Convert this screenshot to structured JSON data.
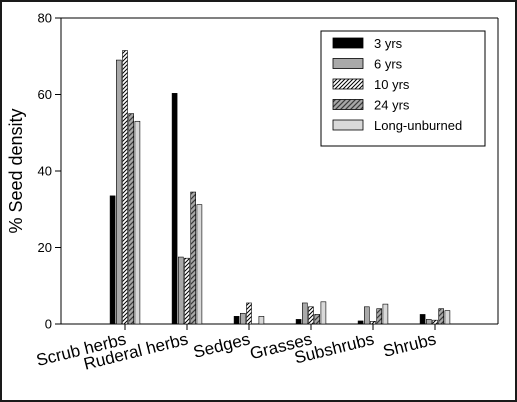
{
  "chart_data": {
    "type": "bar",
    "title": "",
    "xlabel": "",
    "ylabel": "% Seed density",
    "ylim": [
      0,
      80
    ],
    "yticks": [
      0,
      20,
      40,
      60,
      80
    ],
    "grid": false,
    "legend_position": "top-right",
    "categories": [
      "Scrub herbs",
      "Ruderal herbs",
      "Sedges",
      "Grasses",
      "Subshrubs",
      "Shrubs"
    ],
    "series": [
      {
        "name": "3 yrs",
        "pattern": "solid-black",
        "values": [
          33.5,
          60.3,
          2.0,
          1.2,
          0.8,
          2.5
        ]
      },
      {
        "name": "6 yrs",
        "pattern": "dark-gray",
        "values": [
          69.0,
          17.5,
          2.8,
          5.5,
          4.5,
          1.2
        ]
      },
      {
        "name": "10 yrs",
        "pattern": "white-diagonal-hatch",
        "values": [
          71.5,
          17.2,
          5.5,
          4.5,
          0.7,
          1.0
        ]
      },
      {
        "name": "24 yrs",
        "pattern": "gray-diagonal-hatch",
        "values": [
          55.0,
          34.5,
          0.0,
          2.5,
          4.0,
          4.0
        ]
      },
      {
        "name": "Long-unburned",
        "pattern": "light-gray",
        "values": [
          53.0,
          31.2,
          2.0,
          5.8,
          5.2,
          3.5
        ]
      }
    ]
  }
}
